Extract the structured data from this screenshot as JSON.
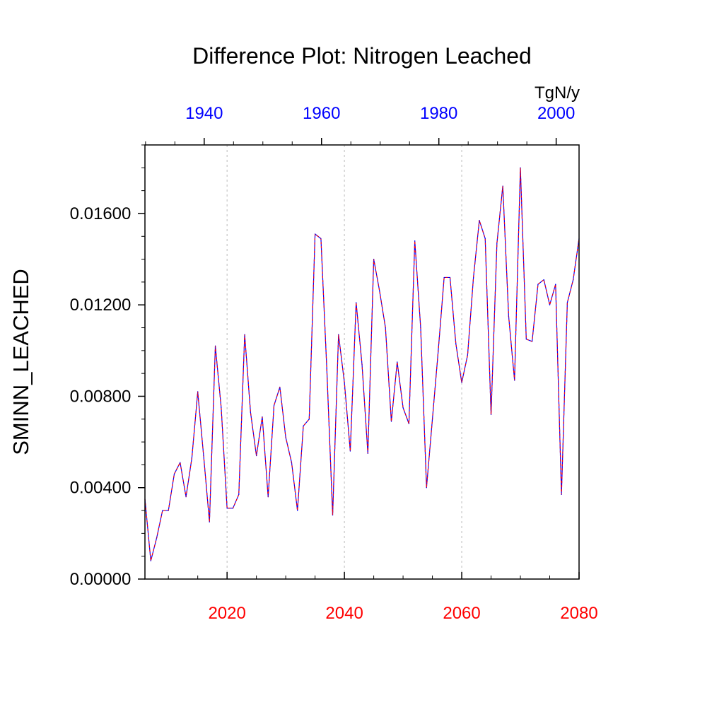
{
  "chart_data": {
    "type": "line",
    "title": "Difference Plot: Nitrogen Leached",
    "units": "TgN/y",
    "ylabel": "SMINN_LEACHED",
    "ylim": [
      0,
      0.019
    ],
    "y_ticks": [
      {
        "value": 0.0,
        "label": "0.00000"
      },
      {
        "value": 0.004,
        "label": "0.00400"
      },
      {
        "value": 0.008,
        "label": "0.00800"
      },
      {
        "value": 0.012,
        "label": "0.01200"
      },
      {
        "value": 0.016,
        "label": "0.01600"
      }
    ],
    "x_bottom": {
      "range": [
        2006,
        2080
      ],
      "color": "#ff0000",
      "ticks": [
        {
          "value": 2020,
          "label": "2020"
        },
        {
          "value": 2040,
          "label": "2040"
        },
        {
          "value": 2060,
          "label": "2060"
        },
        {
          "value": 2080,
          "label": "2080"
        }
      ]
    },
    "x_top": {
      "range": [
        1929.9,
        2003.9
      ],
      "color": "#0000ff",
      "ticks": [
        {
          "value": 1940,
          "label": "1940"
        },
        {
          "value": 1960,
          "label": "1960"
        },
        {
          "value": 1980,
          "label": "1980"
        },
        {
          "value": 2000,
          "label": "2000"
        }
      ]
    },
    "grid": "vertical-dashed",
    "colors": {
      "series_solid": "#0000ff",
      "series_dashed": "#ff0000",
      "grid": "#bbbbbb"
    },
    "x": [
      2006,
      2007,
      2008,
      2009,
      2010,
      2011,
      2012,
      2013,
      2014,
      2015,
      2016,
      2017,
      2018,
      2019,
      2020,
      2021,
      2022,
      2023,
      2024,
      2025,
      2026,
      2027,
      2028,
      2029,
      2030,
      2031,
      2032,
      2033,
      2034,
      2035,
      2036,
      2037,
      2038,
      2039,
      2040,
      2041,
      2042,
      2043,
      2044,
      2045,
      2046,
      2047,
      2048,
      2049,
      2050,
      2051,
      2052,
      2053,
      2054,
      2055,
      2056,
      2057,
      2058,
      2059,
      2060,
      2061,
      2062,
      2063,
      2064,
      2065,
      2066,
      2067,
      2068,
      2069,
      2070,
      2071,
      2072,
      2073,
      2074,
      2075,
      2076,
      2077,
      2078,
      2079,
      2080
    ],
    "series": [
      {
        "values": [
          0.0035,
          0.0008,
          0.0018,
          0.003,
          0.003,
          0.0046,
          0.0051,
          0.0036,
          0.0053,
          0.0082,
          0.0054,
          0.0025,
          0.0102,
          0.0075,
          0.0031,
          0.0031,
          0.0037,
          0.0107,
          0.0073,
          0.0054,
          0.0071,
          0.0036,
          0.0076,
          0.0084,
          0.0062,
          0.0051,
          0.003,
          0.0067,
          0.007,
          0.0151,
          0.0149,
          0.0092,
          0.0028,
          0.0107,
          0.0086,
          0.0056,
          0.0121,
          0.0094,
          0.0055,
          0.014,
          0.0126,
          0.011,
          0.0069,
          0.0095,
          0.0075,
          0.0068,
          0.0148,
          0.011,
          0.004,
          0.007,
          0.01,
          0.0132,
          0.0132,
          0.0103,
          0.0086,
          0.0098,
          0.0132,
          0.0157,
          0.0149,
          0.0072,
          0.0147,
          0.0172,
          0.0115,
          0.0087,
          0.018,
          0.0105,
          0.0104,
          0.0129,
          0.0131,
          0.012,
          0.0129,
          0.0037,
          0.0121,
          0.0131,
          0.0149
        ]
      }
    ]
  }
}
